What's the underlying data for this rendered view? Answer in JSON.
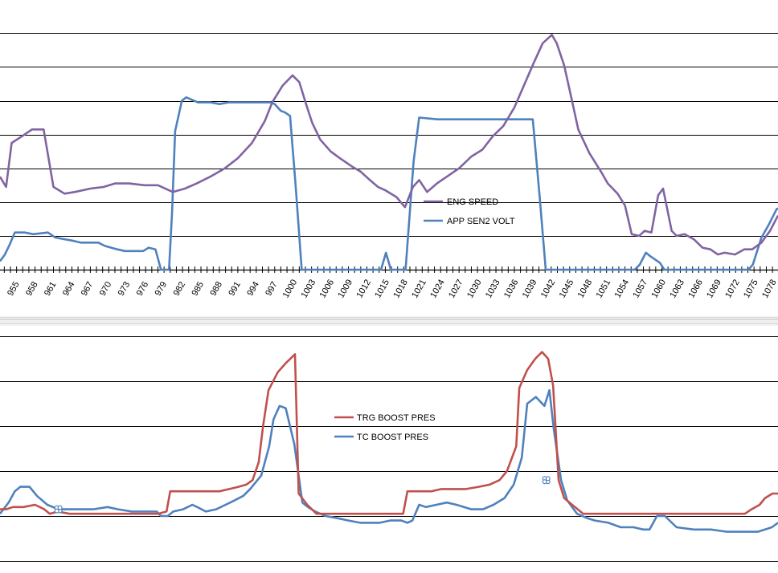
{
  "chart_data": [
    {
      "type": "line",
      "title": "",
      "xlabel": "",
      "ylabel": "",
      "grid": true,
      "legend_position": "center-right",
      "x_ticks": [
        955,
        958,
        961,
        964,
        967,
        970,
        973,
        976,
        979,
        982,
        985,
        988,
        991,
        994,
        997,
        1000,
        1003,
        1006,
        1009,
        1012,
        1015,
        1018,
        1021,
        1024,
        1027,
        1030,
        1033,
        1036,
        1039,
        1042,
        1045,
        1048,
        1051,
        1054,
        1057,
        1060,
        1063,
        1066,
        1069,
        1072,
        1075,
        1078
      ],
      "xlim": [
        953.3,
        1079.9
      ],
      "series": [
        {
          "name": "ENG SPEED",
          "color": "#8064a2",
          "x": [
            953.3,
            954.3,
            955.2,
            956.9,
            958.5,
            960.4,
            962.0,
            963.8,
            965.5,
            968.0,
            970.2,
            972.0,
            974.3,
            976.8,
            979.0,
            981.4,
            983.4,
            985.3,
            987.5,
            989.9,
            992.0,
            994.3,
            996.4,
            997.6,
            999.3,
            1000.9,
            1002.0,
            1003.1,
            1004.1,
            1005.4,
            1007.1,
            1008.6,
            1010.6,
            1012.0,
            1013.5,
            1014.8,
            1016.0,
            1017.8,
            1019.2,
            1020.5,
            1021.5,
            1022.8,
            1024.4,
            1026.0,
            1028.0,
            1030.0,
            1031.8,
            1033.5,
            1035.2,
            1037.0,
            1038.8,
            1040.1,
            1041.6,
            1043.1,
            1043.9,
            1045.1,
            1046.2,
            1047.4,
            1049.2,
            1051.1,
            1052.2,
            1053.8,
            1055.0,
            1056.1,
            1057.3,
            1058.2,
            1059.3,
            1060.4,
            1061.2,
            1062.6,
            1063.4,
            1064.7,
            1066.2,
            1067.6,
            1068.9,
            1070.1,
            1071.2,
            1072.9,
            1074.4,
            1075.7,
            1077.2,
            1078.6,
            1079.9
          ],
          "values": [
            2.75,
            2.45,
            3.75,
            3.95,
            4.15,
            4.15,
            2.45,
            2.25,
            2.3,
            2.4,
            2.45,
            2.55,
            2.55,
            2.5,
            2.5,
            2.3,
            2.4,
            2.55,
            2.75,
            3.0,
            3.3,
            3.75,
            4.4,
            4.95,
            5.45,
            5.75,
            5.55,
            4.9,
            4.35,
            3.85,
            3.5,
            3.3,
            3.05,
            2.9,
            2.65,
            2.45,
            2.35,
            2.15,
            1.85,
            2.45,
            2.65,
            2.3,
            2.55,
            2.75,
            3.0,
            3.35,
            3.55,
            3.95,
            4.25,
            4.8,
            5.55,
            6.1,
            6.7,
            6.95,
            6.7,
            6.05,
            5.15,
            4.15,
            3.45,
            2.9,
            2.55,
            2.25,
            1.9,
            1.05,
            1.0,
            1.15,
            1.1,
            2.2,
            2.4,
            1.15,
            1.0,
            1.05,
            0.9,
            0.65,
            0.6,
            0.45,
            0.5,
            0.45,
            0.6,
            0.6,
            0.8,
            1.15,
            1.6
          ]
        },
        {
          "name": "APP SEN2 VOLT",
          "color": "#4f81bd",
          "x": [
            953.3,
            954.1,
            954.9,
            955.7,
            957.3,
            958.7,
            961.1,
            962.3,
            963.8,
            965.3,
            966.4,
            969.3,
            970.4,
            972.4,
            973.6,
            976.6,
            977.5,
            978.6,
            979.5,
            980.2,
            980.8,
            981.3,
            981.8,
            982.9,
            983.6,
            985.5,
            987.6,
            989.0,
            990.5,
            997.3,
            998.0,
            999.0,
            999.7,
            1000.5,
            1001.4,
            1002.4,
            1003.6,
            1015.3,
            1016.1,
            1016.9,
            1017.7,
            1019.3,
            1020.6,
            1021.5,
            1024.5,
            1038.9,
            1040.0,
            1041.1,
            1042.1,
            1043.5,
            1050.8,
            1056.6,
            1057.4,
            1058.4,
            1059.1,
            1060.7,
            1061.4,
            1063.1,
            1075.1,
            1075.8,
            1077.2,
            1078.3,
            1079.7,
            1079.9
          ],
          "values": [
            0.25,
            0.45,
            0.75,
            1.1,
            1.1,
            1.05,
            1.1,
            0.95,
            0.9,
            0.85,
            0.8,
            0.8,
            0.7,
            0.6,
            0.55,
            0.55,
            0.65,
            0.6,
            0.0,
            0.0,
            0.0,
            1.7,
            4.1,
            5.0,
            5.1,
            4.95,
            4.95,
            4.9,
            4.95,
            4.95,
            4.9,
            4.7,
            4.65,
            4.55,
            2.5,
            0.0,
            0.0,
            0.0,
            0.5,
            0.0,
            0.0,
            0.0,
            3.2,
            4.5,
            4.45,
            4.45,
            4.45,
            2.2,
            0.0,
            0.0,
            0.0,
            0.0,
            0.15,
            0.5,
            0.4,
            0.2,
            0.0,
            0.0,
            0.0,
            0.15,
            0.95,
            1.3,
            1.8,
            1.8
          ]
        }
      ]
    },
    {
      "type": "line",
      "title": "",
      "xlabel": "",
      "ylabel": "",
      "grid": true,
      "legend_position": "center",
      "xlim": [
        953.3,
        1079.9
      ],
      "series": [
        {
          "name": "TRG BOOST PRES",
          "color": "#c0504d",
          "x": [
            953.3,
            954.3,
            955.4,
            957.1,
            959.0,
            960.5,
            961.4,
            962.7,
            964.6,
            966.8,
            969.1,
            971.3,
            973.5,
            975.5,
            977.5,
            979.0,
            980.4,
            981.0,
            982.7,
            984.4,
            986.0,
            987.5,
            989.0,
            990.6,
            992.1,
            993.4,
            994.4,
            995.4,
            996.1,
            997.0,
            998.5,
            999.8,
            1001.3,
            1001.9,
            1003.3,
            1004.8,
            1006.1,
            1008.1,
            1010.3,
            1012.2,
            1014.5,
            1016.4,
            1017.7,
            1018.9,
            1019.6,
            1020.6,
            1021.9,
            1023.5,
            1025.1,
            1027.1,
            1029.1,
            1031.2,
            1033.0,
            1034.6,
            1035.8,
            1037.3,
            1037.8,
            1039.1,
            1040.4,
            1041.5,
            1042.5,
            1043.3,
            1044.2,
            1045.1,
            1046.4,
            1048.2,
            1050.3,
            1052.8,
            1055.4,
            1057.7,
            1059.0,
            1060.6,
            1063.0,
            1066.1,
            1068.8,
            1071.5,
            1073.6,
            1074.5,
            1075.6,
            1076.9,
            1077.8,
            1079.0,
            1079.9
          ],
          "values": [
            0.15,
            0.15,
            0.2,
            0.2,
            0.25,
            0.15,
            0.05,
            0.1,
            0.05,
            0.05,
            0.05,
            0.05,
            0.05,
            0.05,
            0.05,
            0.05,
            0.1,
            0.55,
            0.55,
            0.55,
            0.55,
            0.55,
            0.55,
            0.6,
            0.65,
            0.7,
            0.8,
            1.2,
            2.0,
            2.8,
            3.2,
            3.4,
            3.6,
            0.5,
            0.25,
            0.05,
            0.05,
            0.05,
            0.05,
            0.05,
            0.05,
            0.05,
            0.05,
            0.05,
            0.55,
            0.55,
            0.55,
            0.55,
            0.6,
            0.6,
            0.6,
            0.65,
            0.7,
            0.8,
            1.0,
            1.55,
            2.85,
            3.25,
            3.5,
            3.65,
            3.5,
            2.9,
            0.8,
            0.4,
            0.25,
            0.05,
            0.05,
            0.05,
            0.05,
            0.05,
            0.05,
            0.05,
            0.05,
            0.05,
            0.05,
            0.05,
            0.05,
            0.05,
            0.15,
            0.25,
            0.4,
            0.5,
            0.5
          ]
        },
        {
          "name": "TC BOOST PRES",
          "color": "#4f81bd",
          "x": [
            953.3,
            954.7,
            955.7,
            956.6,
            958.1,
            959.3,
            961.0,
            962.8,
            964.2,
            966.5,
            968.5,
            970.8,
            972.5,
            974.7,
            977.0,
            978.8,
            979.5,
            980.6,
            981.5,
            983.1,
            984.6,
            985.4,
            986.8,
            988.5,
            990.0,
            991.5,
            992.9,
            994.0,
            995.8,
            997.1,
            997.8,
            998.8,
            999.8,
            1001.2,
            1002.5,
            1003.4,
            1004.6,
            1006.3,
            1008.3,
            1010.0,
            1011.9,
            1013.6,
            1015.1,
            1016.8,
            1018.6,
            1019.6,
            1020.4,
            1021.5,
            1022.6,
            1024.3,
            1026.0,
            1027.6,
            1030.0,
            1031.9,
            1033.6,
            1035.4,
            1036.9,
            1038.2,
            1039.1,
            1040.5,
            1041.9,
            1042.7,
            1043.4,
            1044.6,
            1045.6,
            1047.2,
            1048.9,
            1050.1,
            1052.3,
            1054.3,
            1056.4,
            1058.0,
            1059.0,
            1060.2,
            1061.5,
            1063.4,
            1066.2,
            1069.0,
            1071.6,
            1074.3,
            1075.6,
            1076.6,
            1077.8,
            1078.9,
            1079.9
          ],
          "values": [
            0.05,
            0.3,
            0.55,
            0.65,
            0.65,
            0.45,
            0.25,
            0.15,
            0.15,
            0.15,
            0.15,
            0.2,
            0.15,
            0.1,
            0.1,
            0.1,
            0.0,
            0.0,
            0.1,
            0.15,
            0.25,
            0.2,
            0.1,
            0.15,
            0.25,
            0.35,
            0.45,
            0.6,
            0.9,
            1.55,
            2.15,
            2.45,
            2.4,
            1.6,
            0.3,
            0.2,
            0.1,
            0.0,
            -0.05,
            -0.1,
            -0.15,
            -0.15,
            -0.15,
            -0.1,
            -0.1,
            -0.15,
            -0.1,
            0.25,
            0.2,
            0.25,
            0.3,
            0.25,
            0.15,
            0.15,
            0.25,
            0.4,
            0.7,
            1.3,
            2.5,
            2.65,
            2.45,
            2.8,
            1.95,
            0.8,
            0.35,
            0.05,
            -0.05,
            -0.1,
            -0.15,
            -0.25,
            -0.25,
            -0.3,
            -0.3,
            0.0,
            0.0,
            -0.25,
            -0.3,
            -0.3,
            -0.35,
            -0.35,
            -0.35,
            -0.35,
            -0.3,
            -0.25,
            -0.15
          ]
        }
      ]
    }
  ]
}
